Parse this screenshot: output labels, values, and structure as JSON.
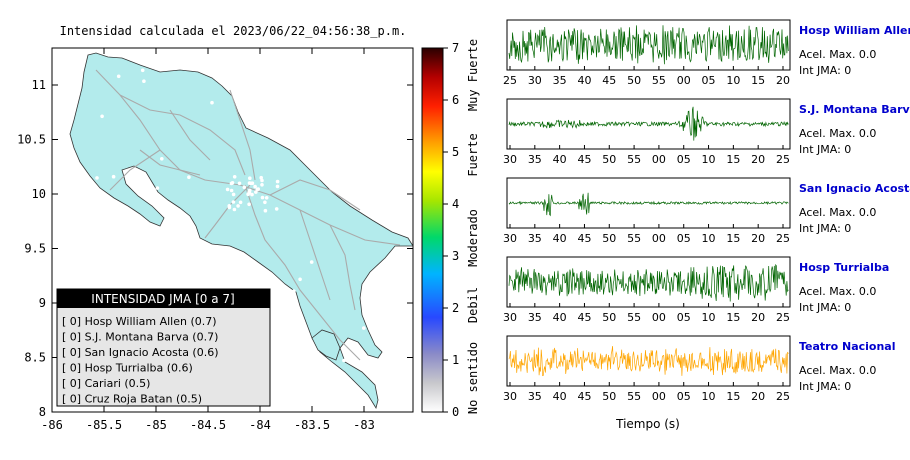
{
  "title": "Intensidad calculada el 2023/06/22_04:56:38_p.m.",
  "map": {
    "x_ticks": [
      "-86",
      "-85.5",
      "-85",
      "-84.5",
      "-84",
      "-83.5",
      "-83"
    ],
    "y_ticks": [
      "11",
      "10.5",
      "10",
      "9.5",
      "9",
      "8.5",
      "8"
    ],
    "land_color": "#b3ebec",
    "road_color": "#aaaaaa"
  },
  "colorbar": {
    "ticks": [
      "7",
      "6",
      "5",
      "4",
      "3",
      "2",
      "1",
      "0"
    ],
    "labels": [
      "Muy Fuerte",
      "Fuerte",
      "Moderado",
      "Debil",
      "No sentido"
    ]
  },
  "legend": {
    "title": "INTENSIDAD JMA [0 a 7]",
    "items": [
      "[ 0]  Hosp William Allen (0.7)",
      "[ 0]  S.J. Montana Barva (0.7)",
      "[ 0]  San Ignacio Acosta (0.6)",
      "[ 0]  Hosp Turrialba (0.6)",
      "[ 0]  Cariari (0.5)",
      "[ 0]  Cruz Roja Batan (0.5)"
    ]
  },
  "waveforms": {
    "xlabel": "Tiempo (s)",
    "accel_label": "Acel. Max. 0.0",
    "jma_label": "Int JMA: 0",
    "panels": [
      {
        "name": "Hosp William Allen",
        "color": "#006400",
        "ticks": [
          "25",
          "30",
          "35",
          "40",
          "45",
          "50",
          "55",
          "00",
          "05",
          "10",
          "15",
          "20"
        ]
      },
      {
        "name": "S.J. Montana Barva",
        "color": "#006400",
        "ticks": [
          "30",
          "35",
          "40",
          "45",
          "50",
          "55",
          "00",
          "05",
          "10",
          "15",
          "20",
          "25"
        ]
      },
      {
        "name": "San Ignacio Acosta",
        "color": "#006400",
        "ticks": [
          "30",
          "35",
          "40",
          "45",
          "50",
          "55",
          "00",
          "05",
          "10",
          "15",
          "20",
          "25"
        ]
      },
      {
        "name": "Hosp Turrialba",
        "color": "#006400",
        "ticks": [
          "30",
          "35",
          "40",
          "45",
          "50",
          "55",
          "00",
          "05",
          "10",
          "15",
          "20",
          "25"
        ]
      },
      {
        "name": "Teatro Nacional",
        "color": "#ffa500",
        "ticks": [
          "30",
          "35",
          "40",
          "45",
          "50",
          "55",
          "00",
          "05",
          "10",
          "15",
          "20",
          "25"
        ]
      }
    ]
  },
  "chart_data": {
    "type": "heatmap",
    "title": "Intensidad calculada el 2023/06/22_04:56:38_p.m.",
    "xlim": [
      -86,
      -82.6
    ],
    "ylim": [
      8,
      11.35
    ],
    "colorbar_range": [
      0,
      7
    ],
    "stations": [
      {
        "name": "Hosp William Allen",
        "jma": 0,
        "value": 0.7
      },
      {
        "name": "S.J. Montana Barva",
        "jma": 0,
        "value": 0.7
      },
      {
        "name": "San Ignacio Acosta",
        "jma": 0,
        "value": 0.6
      },
      {
        "name": "Hosp Turrialba",
        "jma": 0,
        "value": 0.6
      },
      {
        "name": "Cariari",
        "jma": 0,
        "value": 0.5
      },
      {
        "name": "Cruz Roja Batan",
        "jma": 0,
        "value": 0.5
      }
    ],
    "pga": [
      0.0,
      0.0,
      0.0,
      0.0,
      0.0
    ]
  }
}
